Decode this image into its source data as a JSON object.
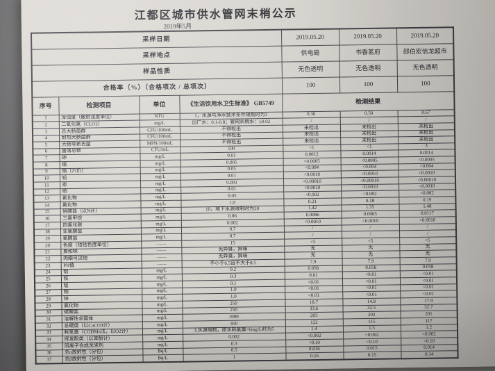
{
  "page": {
    "title": "江都区城市供水管网末梢公示",
    "subtitle": "2019年5月"
  },
  "columns": {
    "index": "序号",
    "item": "检测项目",
    "unit": "单位",
    "standard": "《生活饮用水卫生标准》 GB5749",
    "results": "检测结果"
  },
  "meta_rows": [
    {
      "label": "采样日期",
      "values": [
        "2019.05.20",
        "2019.05.20",
        "2019.05.20"
      ]
    },
    {
      "label": "采样地点",
      "values": [
        "供电局",
        "书香茗府",
        "邵伯宏信龙超市"
      ]
    },
    {
      "label": "样品性质",
      "values": [
        "无色透明",
        "无色透明",
        "无色透明"
      ]
    },
    {
      "label": "合格率（%）（合格项次 / 总项次）",
      "values": [
        "100",
        "100",
        "100"
      ]
    }
  ],
  "rows": [
    [
      "1",
      "浑浊度（散射浊度单位）",
      "NTU",
      "1，水源与净水技术条件限制时为3",
      "0.30",
      "0.50",
      "0.67"
    ],
    [
      "2",
      "二氧化氯（CLO2）",
      "mg/L",
      "出厂水：0.1-0.8；管网末梢水：≥0.02",
      "/",
      "/",
      "/"
    ],
    [
      "3",
      "总大肠菌群",
      "CFU/100mL",
      "不得检出",
      "未检出",
      "未检出",
      "未检出"
    ],
    [
      "4",
      "耐热大肠菌群",
      "CFU/100mL",
      "不得检出",
      "未检出",
      "未检出",
      "未检出"
    ],
    [
      "5",
      "大肠埃希氏菌",
      "MPN/100mL",
      "不得检出",
      "未检出",
      "未检出",
      "未检出"
    ],
    [
      "6",
      "菌落总数",
      "CFU/mL",
      "100",
      "<1",
      "<1",
      "3"
    ],
    [
      "7",
      "砷",
      "mg/L",
      "0.01",
      "0.0012",
      "0.0014",
      "0.0014"
    ],
    [
      "8",
      "镉",
      "mg/L",
      "0.005",
      "<0.0005",
      "<0.0005",
      "<0.0005"
    ],
    [
      "9",
      "铬（六价）",
      "mg/L",
      "0.05",
      "<0.004",
      "<0.004",
      "<0.004"
    ],
    [
      "10",
      "铅",
      "mg/L",
      "0.01",
      "<0.0010",
      "<0.0010",
      "<0.0010"
    ],
    [
      "11",
      "汞",
      "mg/L",
      "0.001",
      "<0.00010",
      "<0.00010",
      "<0.00010"
    ],
    [
      "12",
      "硒",
      "mg/L",
      "0.01",
      "<0.0010",
      "<0.0010",
      "<0.0010"
    ],
    [
      "13",
      "氰化物",
      "mg/L",
      "0.05",
      "<0.002",
      "<0.002",
      "<0.002"
    ],
    [
      "14",
      "氟化物",
      "mg/L",
      "1.0",
      "0.21",
      "0.18",
      "0.19"
    ],
    [
      "15",
      "硝酸盐（以N计）",
      "mg/L",
      "10，地下水源限制时为20",
      "1.42",
      "1.55",
      "1.48"
    ],
    [
      "16",
      "三氯甲烷",
      "mg/L",
      "0.06",
      "0.0086",
      "0.0065",
      "0.0117"
    ],
    [
      "17",
      "四氯化碳",
      "mg/L",
      "0.002",
      "<0.0010",
      "<0.0010",
      "<0.0010"
    ],
    [
      "18",
      "亚氯酸盐",
      "mg/L",
      "0.7",
      "/",
      "/",
      "/"
    ],
    [
      "19",
      "氯酸盐",
      "mg/L",
      "0.7",
      "/",
      "/",
      "/"
    ],
    [
      "20",
      "色度（铂钴色度单位）",
      "——",
      "15",
      "<5",
      "<5",
      "<5"
    ],
    [
      "21",
      "臭和味",
      "——",
      "无异臭，异味",
      "无",
      "无",
      "无"
    ],
    [
      "22",
      "肉眼可见物",
      "——",
      "无异臭，异味",
      "无",
      "无",
      "无"
    ],
    [
      "23",
      "PH值",
      "——",
      "不小于6.5且不大于8.5",
      "7.9",
      "7.9",
      "7.9"
    ],
    [
      "24",
      "铝",
      "mg/L",
      "0.2",
      "0.058",
      "0.058",
      "0.058"
    ],
    [
      "25",
      "铁",
      "mg/L",
      "0.3",
      "0.01",
      "<0.01",
      "<0.01"
    ],
    [
      "26",
      "锰",
      "mg/L",
      "0.1",
      "<0.01",
      "<0.01",
      "<0.01"
    ],
    [
      "27",
      "铜",
      "mg/L",
      "1.0",
      "<0.01",
      "<0.01",
      "<0.01"
    ],
    [
      "28",
      "锌",
      "mg/L",
      "1.0",
      "<0.01",
      "<0.01",
      "<0.01"
    ],
    [
      "29",
      "氯化物",
      "mg/L",
      "250",
      "18.7",
      "14.8",
      "17.9"
    ],
    [
      "30",
      "硫酸盐",
      "mg/L",
      "250",
      "33.6",
      "32.5",
      "32.7"
    ],
    [
      "31",
      "溶解性总固体",
      "mg/L",
      "1000",
      "203",
      "202",
      "201"
    ],
    [
      "32",
      "总硬度（以CaCO3计）",
      "mg/L",
      "450",
      "122",
      "115",
      "117"
    ],
    [
      "33",
      "耗氧量（CODMn法，以O2计）",
      "mg/L",
      "3,水源限制，原水耗氧量>6mg/L时为5",
      "1.4",
      "1.5",
      "1.2"
    ],
    [
      "34",
      "挥发酚类（以苯酚计）",
      "mg/L",
      "0.002",
      "<0.002",
      "<0.002",
      "<0.002"
    ],
    [
      "35",
      "阴离子合成洗涤剂",
      "mg/L",
      "0.3",
      "<0.10",
      "<0.10",
      "<0.10"
    ],
    [
      "36",
      "总α放射性（分包）",
      "Bq/L",
      "0.5",
      "0.016",
      "0.015",
      "0.014"
    ],
    [
      "37",
      "总β放射性（分包）",
      "Bq/L",
      "1",
      "0.16",
      "0.15",
      "0.14"
    ]
  ]
}
